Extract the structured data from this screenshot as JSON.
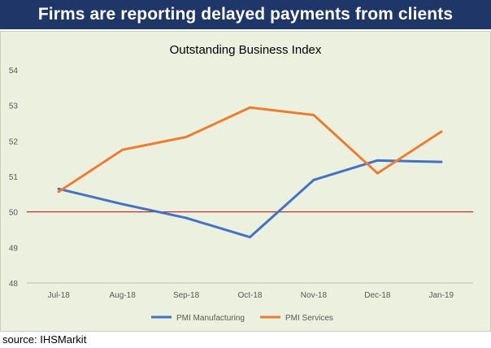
{
  "header": {
    "title": "Firms are reporting delayed payments from clients"
  },
  "footer": {
    "source": "source: IHSMarkit"
  },
  "colors": {
    "banner_bg": "#1f3668",
    "panel_bg": "#ebf1de",
    "manufacturing": "#4472c4",
    "services": "#ed7d31",
    "threshold": "#c00000"
  },
  "chart_data": {
    "type": "line",
    "title": "Outstanding Business Index",
    "xlabel": "",
    "ylabel": "",
    "categories": [
      "Jul-18",
      "Aug-18",
      "Sep-18",
      "Oct-18",
      "Nov-18",
      "Dec-18",
      "Jan-19"
    ],
    "yticks": [
      "48",
      "49",
      "50",
      "51",
      "52",
      "53",
      "54"
    ],
    "ylim": [
      48,
      54
    ],
    "grid": false,
    "legend_position": "bottom",
    "reference_line": {
      "y": 50,
      "color": "#c00000"
    },
    "series": [
      {
        "name": "PMI Manufacturing",
        "color": "#4472c4",
        "values": [
          50.65,
          50.22,
          49.83,
          49.29,
          50.9,
          51.45,
          51.41
        ]
      },
      {
        "name": "PMI Services",
        "color": "#ed7d31",
        "values": [
          50.57,
          51.75,
          52.11,
          52.94,
          52.73,
          51.09,
          52.26
        ]
      }
    ]
  }
}
